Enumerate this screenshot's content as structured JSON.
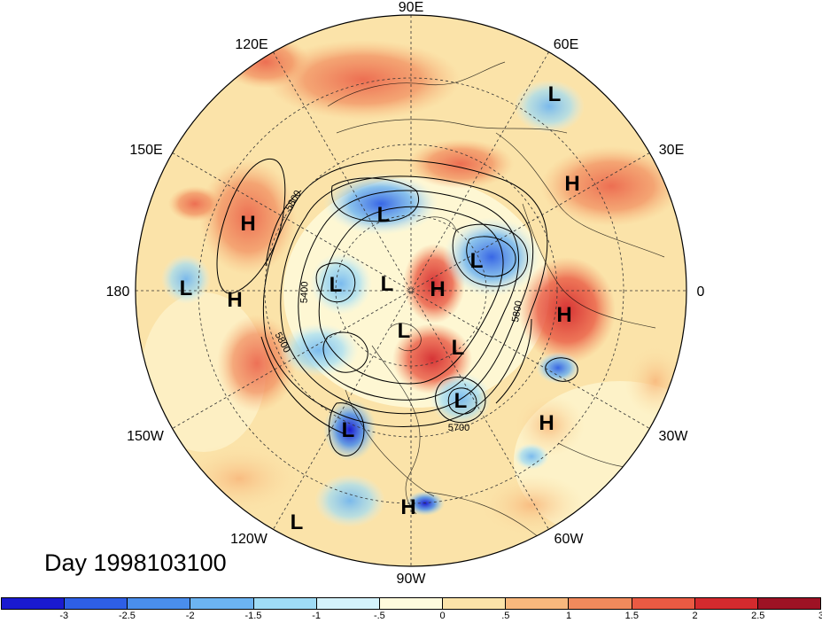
{
  "date_label": "Day 1998103100",
  "longitude_labels": [
    {
      "id": "90e",
      "text": "90E"
    },
    {
      "id": "60e",
      "text": "60E"
    },
    {
      "id": "30e",
      "text": "30E"
    },
    {
      "id": "0",
      "text": "0"
    },
    {
      "id": "30w",
      "text": "30W"
    },
    {
      "id": "60w",
      "text": "60W"
    },
    {
      "id": "90w",
      "text": "90W"
    },
    {
      "id": "120w",
      "text": "120W"
    },
    {
      "id": "150w",
      "text": "150W"
    },
    {
      "id": "180",
      "text": "180"
    },
    {
      "id": "150e",
      "text": "150E"
    },
    {
      "id": "120e",
      "text": "120E"
    }
  ],
  "pressure_centers": [
    "L",
    "H",
    "H",
    "L",
    "H",
    "L",
    "L",
    "L",
    "H",
    "L",
    "L",
    "L",
    "H",
    "H",
    "L",
    "L",
    "H",
    "L"
  ],
  "contour_labels": [
    "5800",
    "5400",
    "5800",
    "5800",
    "5700"
  ],
  "colorbar": {
    "ticks": [
      "-3",
      "-2.5",
      "-2",
      "-1.5",
      "-1",
      "-.5",
      "0",
      ".5",
      "1",
      "1.5",
      "2",
      "2.5",
      "3"
    ],
    "colors": [
      "#1a1ad0",
      "#2e5fe6",
      "#4a8eec",
      "#6cb4f2",
      "#9fdcf6",
      "#d4f2fb",
      "#fffbdd",
      "#fbe3a9",
      "#f8b87d",
      "#f18a5c",
      "#ea5a43",
      "#d42a2e",
      "#9e1224"
    ]
  }
}
